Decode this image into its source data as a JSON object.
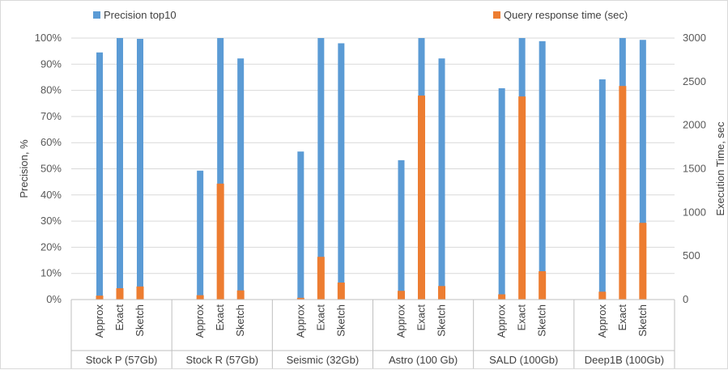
{
  "chart_data": {
    "type": "bar",
    "title": "",
    "groups": [
      "Stock P (57Gb)",
      "Stock R (57Gb)",
      "Seismic (32Gb)",
      "Astro (100 Gb)",
      "SALD (100Gb)",
      "Deep1B (100Gb)"
    ],
    "methods": [
      "Approx",
      "Exact",
      "Sketch"
    ],
    "ylabel_left": "Precision, %",
    "ylabel_right": "Execution Time, sec",
    "ylim_left": [
      0,
      100
    ],
    "ylim_right": [
      0,
      3000
    ],
    "yticks_left": [
      "0%",
      "10%",
      "20%",
      "30%",
      "40%",
      "50%",
      "60%",
      "70%",
      "80%",
      "90%",
      "100%"
    ],
    "yticks_right": [
      "0",
      "500",
      "1000",
      "1500",
      "2000",
      "2500",
      "3000"
    ],
    "legend_placement": "top",
    "grid": true,
    "series": [
      {
        "name": "Precision top10",
        "axis": "left",
        "color": "#5b9bd5",
        "values": [
          [
            94.5,
            100,
            99.7
          ],
          [
            49.3,
            100,
            92.2
          ],
          [
            56.6,
            100,
            98.0
          ],
          [
            53.3,
            100,
            92.2
          ],
          [
            80.8,
            100,
            98.8
          ],
          [
            84.2,
            100,
            99.3
          ]
        ]
      },
      {
        "name": "Query response time (sec)",
        "axis": "right",
        "color": "#ed7d31",
        "values": [
          [
            45,
            130,
            150
          ],
          [
            50,
            1330,
            105
          ],
          [
            20,
            490,
            195
          ],
          [
            100,
            2340,
            155
          ],
          [
            60,
            2330,
            325
          ],
          [
            90,
            2450,
            880
          ]
        ]
      }
    ]
  }
}
